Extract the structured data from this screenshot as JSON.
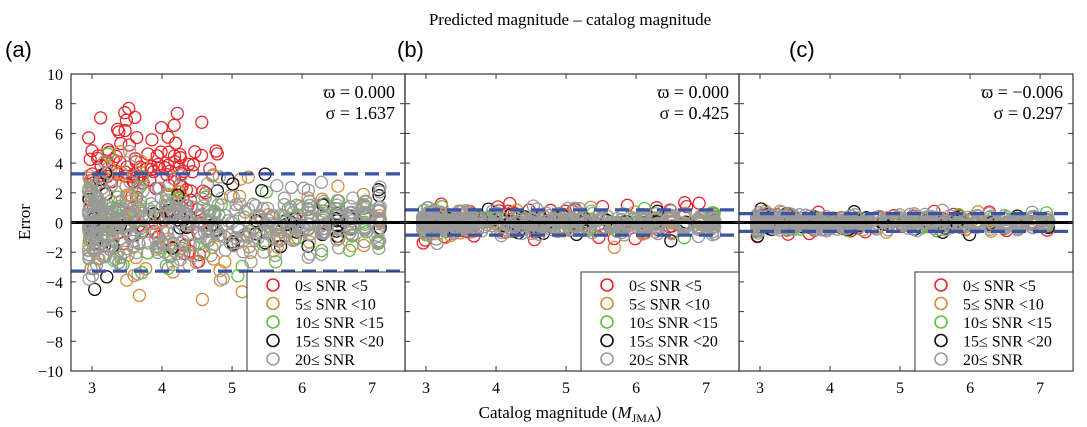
{
  "chart_data": {
    "type": "scatter",
    "title": "Predicted magnitude – catalog magnitude",
    "xlabel": "Catalog magnitude (",
    "xlabel_symbol": "M",
    "xlabel_subscript": "JMA",
    "xlabel_close": ")",
    "ylabel": "Error",
    "xlim": [
      2.7,
      7.47
    ],
    "ylim": [
      -10,
      10
    ],
    "xticks": [
      "3",
      "4",
      "5",
      "6",
      "7"
    ],
    "yticks": [
      "10",
      "8",
      "6",
      "4",
      "2",
      "0",
      "-2",
      "-4",
      "-6",
      "-8",
      "-10"
    ],
    "grid": false,
    "legend_placement": "bottom-right",
    "legend": [
      {
        "label": "0≤ SNR <5",
        "color": "#e8262a"
      },
      {
        "label": "5≤ SNR <10",
        "color": "#d98a3c"
      },
      {
        "label": "10≤ SNR <15",
        "color": "#5fbf3a"
      },
      {
        "label": "15≤ SNR <20",
        "color": "#111111"
      },
      {
        "label": "20≤ SNR",
        "color": "#9a9a9a"
      }
    ],
    "reference_line": {
      "y": 0,
      "color": "#000000"
    },
    "band_color": "#3a55a4",
    "panels": [
      {
        "label": "(a)",
        "mean_text": "ϖ = 0.000",
        "sigma_text": "σ = 1.637",
        "mean": 0.0,
        "sigma": 1.637,
        "band": [
          -3.274,
          3.274
        ],
        "show_legend": true
      },
      {
        "label": "(b)",
        "mean_text": "ϖ = 0.000",
        "sigma_text": "σ = 0.425",
        "mean": 0.0,
        "sigma": 0.425,
        "band": [
          -0.85,
          0.85
        ],
        "show_legend": true
      },
      {
        "label": "(c)",
        "mean_text": "ϖ = −0.006",
        "sigma_text": "σ = 0.297",
        "mean": -0.006,
        "sigma": 0.297,
        "band": [
          -0.6,
          0.6
        ],
        "show_legend": true
      }
    ]
  }
}
